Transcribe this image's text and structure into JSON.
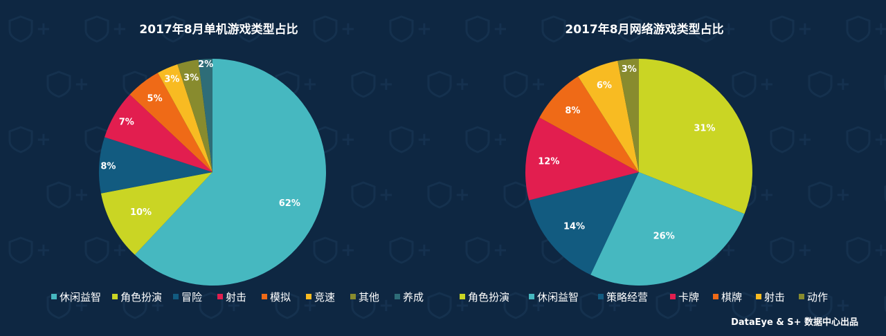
{
  "footer": "DataEye & S+ 数据中心出品",
  "colors": {
    "background": "#0e2742"
  },
  "chart_data": [
    {
      "type": "pie",
      "title": "2017年8月单机游戏类型占比",
      "labels": [
        "休闲益智",
        "角色扮演",
        "冒险",
        "射击",
        "模拟",
        "竞速",
        "其他",
        "养成"
      ],
      "values": [
        62,
        10,
        8,
        7,
        5,
        3,
        3,
        2
      ],
      "value_labels": [
        "62%",
        "10%",
        "8%",
        "7%",
        "5%",
        "3%",
        "3%",
        "2%"
      ],
      "colors": [
        "#46b8c0",
        "#cad524",
        "#125b80",
        "#e21e4f",
        "#ef6a17",
        "#f8bb22",
        "#888b2e",
        "#2e6d78"
      ],
      "legend": "bottom"
    },
    {
      "type": "pie",
      "title": "2017年8月网络游戏类型占比",
      "labels": [
        "角色扮演",
        "休闲益智",
        "策略经营",
        "卡牌",
        "棋牌",
        "射击",
        "动作"
      ],
      "values": [
        31,
        26,
        14,
        12,
        8,
        6,
        3
      ],
      "value_labels": [
        "31%",
        "26%",
        "14%",
        "12%",
        "8%",
        "6%",
        "3%"
      ],
      "colors": [
        "#cad524",
        "#46b8c0",
        "#125b80",
        "#e21e4f",
        "#ef6a17",
        "#f8bb22",
        "#888b2e"
      ],
      "legend": "bottom"
    }
  ]
}
